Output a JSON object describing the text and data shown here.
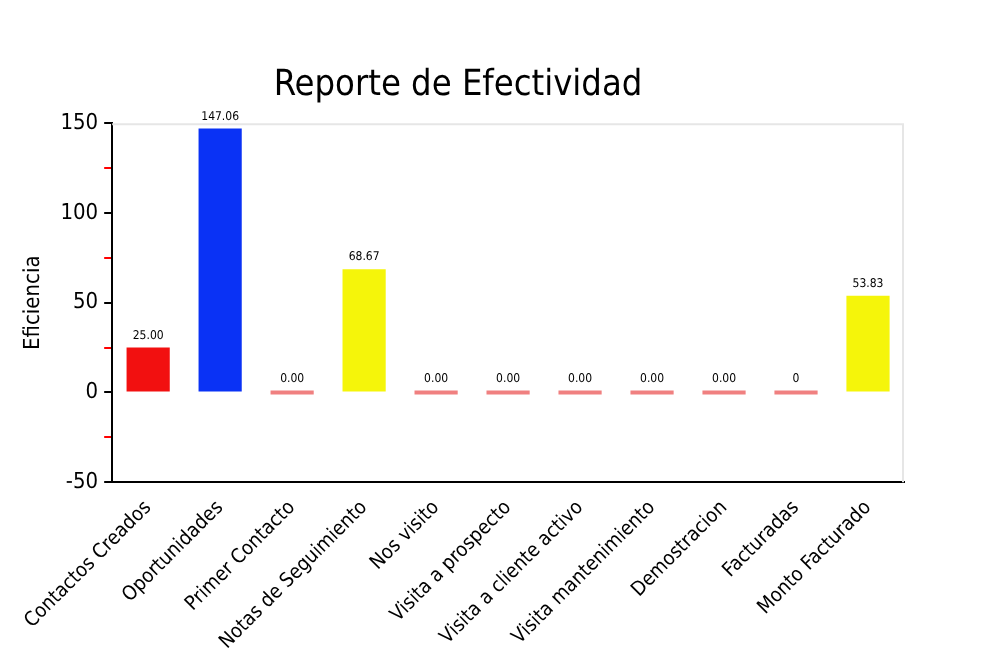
{
  "chart_data": {
    "type": "bar",
    "title": "Reporte de Efectividad",
    "ylabel": "Eficiencia",
    "categories": [
      "Contactos Creados",
      "Oportunidades",
      "Primer Contacto",
      "Notas de Seguimiento",
      "Nos visito",
      "Visita a prospecto",
      "Visita a cliente activo",
      "Visita mantenimiento",
      "Demostracion",
      "Facturadas",
      "Monto Facturado"
    ],
    "values": [
      25,
      147.06,
      0,
      68.67,
      0,
      0,
      0,
      0,
      0,
      0,
      53.83
    ],
    "colors": [
      "#f21010",
      "#0a32f5",
      "#f08080",
      "#f5f50a",
      "#f08080",
      "#f08080",
      "#f08080",
      "#f08080",
      "#f08080",
      "#f08080",
      "#f5f50a"
    ],
    "value_labels": [
      "25.00",
      "147.06",
      "0.00",
      "68.67",
      "0.00",
      "0.00",
      "0.00",
      "0.00",
      "0.00",
      "0",
      "53.83"
    ],
    "ylim": [
      -50,
      150
    ],
    "yticks": [
      -50,
      {
        "value": -25,
        "label": null
      },
      0,
      {
        "value": 25,
        "label": null
      },
      50,
      {
        "value": 75,
        "label": null
      },
      100,
      {
        "value": 125,
        "label": null
      },
      150
    ],
    "grid": false,
    "legend": false
  }
}
